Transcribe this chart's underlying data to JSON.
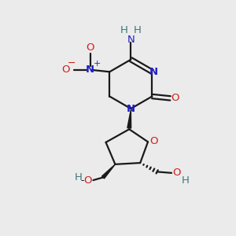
{
  "bg_color": "#ebebeb",
  "bond_color": "#1a1a1a",
  "N_color": "#2020cc",
  "O_color": "#cc2020",
  "H_color": "#3a7a7a",
  "lw": 1.6,
  "fig_w": 3.0,
  "fig_h": 3.0,
  "dpi": 100,
  "xlim": [
    0,
    10
  ],
  "ylim": [
    0,
    10
  ]
}
